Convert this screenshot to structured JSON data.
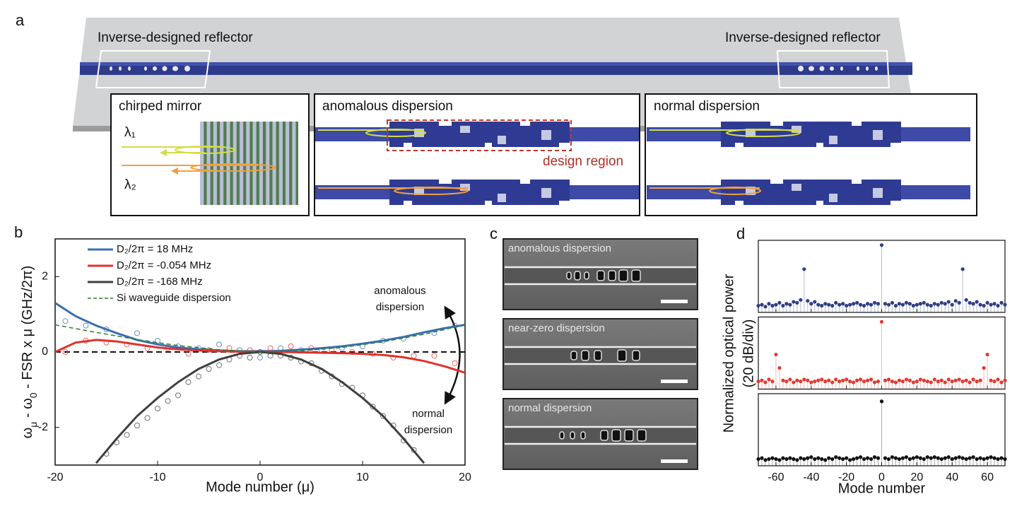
{
  "panel_labels": [
    "a",
    "b",
    "c",
    "d"
  ],
  "diagram": {
    "reflector_labels": [
      "Inverse-designed reflector",
      "Inverse-designed reflector"
    ],
    "insets": [
      {
        "title": "chirped mirror"
      },
      {
        "title": "anomalous dispersion"
      },
      {
        "title": "normal dispersion"
      }
    ],
    "wavelengths": [
      "λ₁",
      "λ₂"
    ],
    "design_region": "design region"
  },
  "images": {
    "labels": [
      "anomalous dispersion",
      "near-zero dispersion",
      "normal dispersion"
    ]
  },
  "chart_data": [
    {
      "type": "line",
      "xlabel": "Mode number (μ)",
      "ylabel": [
        "ω",
        "μ",
        " - ω",
        "0",
        " - FSR x μ (GHz/2π)"
      ],
      "xlim": [
        -20,
        20
      ],
      "ylim": [
        -3,
        3
      ],
      "xticks": [
        -20,
        -10,
        0,
        10,
        20
      ],
      "yticks": [
        -2,
        0,
        2
      ],
      "hline": 0,
      "annotations": [
        [
          "anomalous",
          "dispersion"
        ],
        [
          "normal",
          "dispersion"
        ]
      ],
      "series": [
        {
          "name": "D₂/2π = 18 MHz",
          "color": "#3a6fb0",
          "x": [
            -20,
            -18,
            -16,
            -14,
            -12,
            -10,
            -8,
            -6,
            -4,
            -2,
            0,
            2,
            4,
            6,
            8,
            10,
            12,
            14,
            16,
            18,
            20
          ],
          "values": [
            1.3,
            0.95,
            0.7,
            0.5,
            0.32,
            0.2,
            0.12,
            0.07,
            0.04,
            0.02,
            0.02,
            0.03,
            0.06,
            0.1,
            0.15,
            0.22,
            0.3,
            0.4,
            0.52,
            0.63,
            0.72
          ],
          "points": {
            "x": [
              -19,
              -17,
              -15,
              -12,
              -10,
              -8,
              -6,
              -4,
              -2,
              0,
              2,
              4,
              6,
              8,
              10,
              12,
              14,
              17,
              19
            ],
            "values": [
              0.82,
              0.7,
              0.6,
              0.5,
              0.3,
              0.15,
              0.1,
              0.2,
              0.05,
              -0.15,
              0.1,
              0.05,
              0.05,
              0.1,
              0.15,
              0.3,
              0.35,
              0.5,
              0.7
            ]
          }
        },
        {
          "name": "D₂/2π = -0.054 MHz",
          "color": "#e0322b",
          "x": [
            -20,
            -18,
            -16,
            -14,
            -12,
            -10,
            -8,
            -6,
            -4,
            -2,
            0,
            2,
            4,
            6,
            8,
            10,
            12,
            14,
            16,
            18,
            20
          ],
          "values": [
            0,
            0.25,
            0.32,
            0.28,
            0.2,
            0.12,
            0.07,
            0.04,
            0.02,
            0.01,
            0,
            0,
            -0.01,
            -0.02,
            -0.03,
            -0.05,
            -0.08,
            -0.14,
            -0.24,
            -0.38,
            -0.55
          ],
          "points": {
            "x": [
              -19,
              -17,
              -15,
              -13,
              -11,
              -9,
              -7,
              -5,
              -3,
              -1,
              1,
              3,
              5,
              7,
              9,
              11,
              13,
              15,
              17,
              19
            ],
            "values": [
              0,
              0.3,
              0.25,
              0.2,
              0.1,
              0.1,
              -0.05,
              0.05,
              0.1,
              0.05,
              0.1,
              0.15,
              0.1,
              0.05,
              0,
              -0.05,
              -0.15,
              -0.1,
              -0.1,
              -0.3
            ]
          }
        },
        {
          "name": "D₂/2π = -168 MHz",
          "color": "#404040",
          "x": [
            -16,
            -14,
            -12,
            -10,
            -8,
            -6,
            -4,
            -2,
            0,
            2,
            4,
            6,
            8,
            10,
            12,
            14,
            16
          ],
          "values": [
            -2.95,
            -2.3,
            -1.7,
            -1.22,
            -0.8,
            -0.45,
            -0.2,
            -0.05,
            0,
            -0.05,
            -0.2,
            -0.45,
            -0.8,
            -1.22,
            -1.7,
            -2.3,
            -2.95
          ],
          "points": {
            "x": [
              -15,
              -14,
              -13,
              -12,
              -11,
              -10,
              -9,
              -8,
              -7,
              -6,
              -5,
              -4,
              -3,
              -2,
              -1,
              0,
              1,
              2,
              3,
              4,
              5,
              6,
              7,
              8,
              9,
              10,
              11,
              12,
              13,
              14,
              15
            ],
            "values": [
              -2.7,
              -2.4,
              -2.2,
              -1.95,
              -1.75,
              -1.5,
              -1.3,
              -1.15,
              -0.8,
              -0.65,
              -0.45,
              -0.35,
              -0.2,
              -0.1,
              -0.15,
              0,
              -0.1,
              -0.1,
              -0.15,
              -0.25,
              -0.3,
              -0.5,
              -0.65,
              -0.85,
              -0.95,
              -1.15,
              -1.45,
              -1.7,
              -1.95,
              -2.35,
              -2.6
            ]
          }
        },
        {
          "name": "Si waveguide dispersion",
          "color": "#2e7d32",
          "style": "dashed",
          "x": [
            -20,
            -16,
            -12,
            -8,
            -4,
            0,
            4,
            8,
            12,
            16,
            20
          ],
          "values": [
            0.72,
            0.52,
            0.33,
            0.17,
            0.06,
            0,
            0.03,
            0.12,
            0.27,
            0.47,
            0.72
          ]
        }
      ]
    },
    {
      "type": "stem",
      "xlabel": "Mode number",
      "ylabel": [
        "Normalized optical power",
        "(20 dB/div)"
      ],
      "xlim": [
        -70,
        70
      ],
      "ylim": [
        -70,
        5
      ],
      "xticks": [
        -60,
        -40,
        -20,
        0,
        20,
        40,
        60
      ],
      "x": [
        -70,
        -68,
        -66,
        -64,
        -62,
        -60,
        -58,
        -56,
        -54,
        -52,
        -50,
        -48,
        -46,
        -44,
        -42,
        -40,
        -38,
        -36,
        -34,
        -32,
        -30,
        -28,
        -26,
        -24,
        -22,
        -20,
        -18,
        -16,
        -14,
        -12,
        -10,
        -8,
        -6,
        -4,
        -2,
        0,
        2,
        4,
        6,
        8,
        10,
        12,
        14,
        16,
        18,
        20,
        22,
        24,
        26,
        28,
        30,
        32,
        34,
        36,
        38,
        40,
        42,
        44,
        46,
        48,
        50,
        52,
        54,
        56,
        58,
        60,
        62,
        64,
        66,
        68,
        70
      ],
      "series": [
        {
          "color": "#2f3f86",
          "values": [
            -63,
            -62,
            -64,
            -61,
            -63,
            -62,
            -60,
            -63,
            -61,
            -62,
            -59,
            -60,
            -57,
            -25,
            -58,
            -61,
            -59,
            -62,
            -63,
            -61,
            -62,
            -63,
            -60,
            -62,
            -61,
            -63,
            -62,
            -61,
            -60,
            -62,
            -63,
            -61,
            -62,
            -60,
            -61,
            0,
            -61,
            -62,
            -60,
            -63,
            -61,
            -62,
            -60,
            -61,
            -63,
            -62,
            -61,
            -60,
            -62,
            -63,
            -61,
            -62,
            -60,
            -61,
            -59,
            -62,
            -58,
            -60,
            -25,
            -57,
            -60,
            -61,
            -59,
            -62,
            -63,
            -60,
            -62,
            -61,
            -63,
            -60,
            -62
          ]
        },
        {
          "color": "#e03c31",
          "values": [
            -62,
            -61,
            -63,
            -60,
            -62,
            -34,
            -48,
            -61,
            -62,
            -60,
            -63,
            -61,
            -62,
            -60,
            -61,
            -63,
            -62,
            -61,
            -60,
            -62,
            -61,
            -63,
            -60,
            -62,
            -61,
            -60,
            -62,
            -63,
            -61,
            -60,
            -62,
            -61,
            -60,
            -63,
            -62,
            0,
            -61,
            -60,
            -62,
            -63,
            -61,
            -62,
            -60,
            -61,
            -63,
            -62,
            -60,
            -61,
            -62,
            -63,
            -60,
            -62,
            -61,
            -63,
            -60,
            -62,
            -61,
            -60,
            -62,
            -61,
            -63,
            -60,
            -62,
            -61,
            -48,
            -34,
            -61,
            -62,
            -60,
            -63,
            -61
          ]
        },
        {
          "color": "#111111",
          "values": [
            -63,
            -62,
            -64,
            -63,
            -62,
            -63,
            -64,
            -62,
            -63,
            -62,
            -63,
            -64,
            -62,
            -63,
            -62,
            -61,
            -63,
            -62,
            -63,
            -64,
            -62,
            -63,
            -61,
            -62,
            -63,
            -62,
            -64,
            -63,
            -62,
            -61,
            -63,
            -62,
            -63,
            -61,
            -62,
            -3,
            -62,
            -63,
            -61,
            -62,
            -63,
            -62,
            -61,
            -63,
            -62,
            -61,
            -62,
            -63,
            -61,
            -62,
            -61,
            -62,
            -63,
            -62,
            -61,
            -63,
            -62,
            -61,
            -62,
            -63,
            -62,
            -61,
            -63,
            -62,
            -63,
            -62,
            -61,
            -62,
            -63,
            -62,
            -63
          ]
        }
      ]
    }
  ]
}
